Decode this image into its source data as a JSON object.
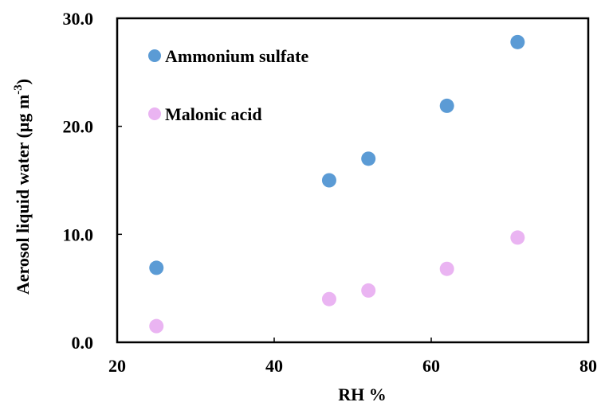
{
  "chart_data": {
    "type": "scatter",
    "xlabel": "RH %",
    "ylabel_main": "Aerosol liquid water (µg m",
    "ylabel_sup": "-3",
    "ylabel_close": ")",
    "xlim": [
      20,
      80
    ],
    "ylim": [
      0,
      30
    ],
    "x_ticks": [
      "20",
      "40",
      "60",
      "80"
    ],
    "y_ticks": [
      "0.0",
      "10.0",
      "20.0",
      "30.0"
    ],
    "grid": false,
    "legend_position": "top-left",
    "series": [
      {
        "name": "Ammonium sulfate",
        "color": "#5b9bd5",
        "points": [
          {
            "x": 25,
            "y": 6.9
          },
          {
            "x": 47,
            "y": 15.0
          },
          {
            "x": 52,
            "y": 17.0
          },
          {
            "x": 62,
            "y": 21.9
          },
          {
            "x": 71,
            "y": 27.8
          }
        ]
      },
      {
        "name": "Malonic acid",
        "color": "#eab4f2",
        "points": [
          {
            "x": 25,
            "y": 1.5
          },
          {
            "x": 47,
            "y": 4.0
          },
          {
            "x": 52,
            "y": 4.8
          },
          {
            "x": 62,
            "y": 6.8
          },
          {
            "x": 71,
            "y": 9.7
          }
        ]
      }
    ]
  }
}
